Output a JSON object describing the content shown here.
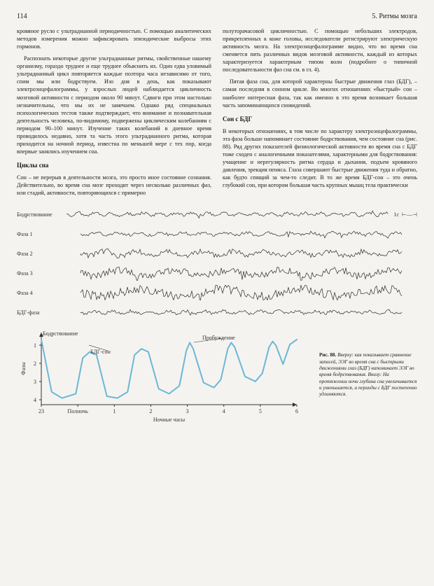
{
  "page_number": "114",
  "chapter_header": "5. Ритмы мозга",
  "col1": {
    "p1": "кровяное русло с ультрадианной периодичностью. С помощью аналитических методов измерения можно зафиксировать эпизодические выбросы этих гормонов.",
    "p2": "Распознать некоторые другие ультрадианные ритмы, свойственные нашему организму, гораздо труднее и еще труднее объяснить их. Один едва уловимый ультрадианный цикл повторяется каждые полтора часа независимо от того, спим мы или бодрствуем. Изо дня в день, как показывают электроэнцефалограммы, у взрослых людей наблюдается цикличность мозговой активности с периодом около 90 минут. Сдвиги при этом настолько незначительны, что мы их не замечаем. Однако ряд специальных психологических тестов также подтверждает, что внимание и познавательная деятельность человека, по-видимому, подвержены циклическим колебаниям с периодом 90–100 минут. Изучение таких колебаний в дневное время проводилось недавно, хотя та часть этого ультрадианного ритма, которая приходится на ночной период, известна по меньшей мере с тех пор, когда впервые занялись изучением сна.",
    "h1": "Циклы сна",
    "p3": "Сон – не перерыв в деятельности мозга, это просто иное состояние сознания. Действительно, во время сна мозг проходит через несколько различных фаз, или стадий, активности, повторяющихся с примерно"
  },
  "col2": {
    "p1": "полуторачасовой цикличностью. С помощью небольших электродов, прикрепленных к коже головы, исследователи регистрируют электрическую активность мозга. На электроэнцефалограмме видно, что во время сна сменяется пять различных видов мозговой активности, каждый из которых характеризуется характерным типом волн (подробнее о типичной последовательности фаз сна см. в гл. 4).",
    "p2": "Пятая фаза сна, для которой характерны быстрые движения глаз (БДГ), – самая последняя в сонном цикле. Во многих отношениях «быстрый» сон – наиболее интересная фаза, так как именно в это время возникает большая часть запоминающихся сновидений.",
    "h1": "Сон с БДГ",
    "p3": "В некоторых отношениях, в том числе по характеру электроэнцефалограммы, эта фаза больше напоминает состояние бодрствования, чем состояние сна (рис. 88). Ряд других показателей физиологической активности во время сна с БДГ тоже сходен с аналогичными показателями, характерными для бодрствования: учащение и нерегулярность ритма сердца и дыхания, подъем кровяного давления, эрекция пениса. Глаза совершают быстрые движения туда и обратно, как будто спящий за чем-то следит. В то же время БДГ-сон – это очень глубокий сон, при котором большая часть крупных мышц тела практически"
  },
  "eeg": {
    "labels": [
      "Бодрствование",
      "Фаза 1",
      "Фаза 2",
      "Фаза 3",
      "Фаза 4",
      "БДГ-фаза"
    ],
    "scale_label": "1с",
    "wave_amplitudes": [
      3,
      3,
      5,
      7,
      9,
      3
    ],
    "wave_freqs": [
      40,
      30,
      20,
      12,
      8,
      35
    ],
    "color": "#2a2a2a"
  },
  "chart": {
    "ylabel": "Фазы",
    "xlabel": "Ночные часы",
    "top_label_wake": "Бодрствование",
    "label_bdg": "БДГ-сон",
    "label_wakeup": "Пробуждение",
    "yticks": [
      "1",
      "2",
      "3",
      "4"
    ],
    "xticks": [
      "23",
      "Полночь",
      "1",
      "2",
      "3",
      "4",
      "5",
      "6"
    ],
    "line_color": "#6bb8d6",
    "axis_color": "#333333",
    "background": "#f5f3f0",
    "points": [
      [
        0,
        0
      ],
      [
        15,
        85
      ],
      [
        30,
        95
      ],
      [
        50,
        88
      ],
      [
        60,
        30
      ],
      [
        70,
        20
      ],
      [
        80,
        25
      ],
      [
        95,
        92
      ],
      [
        110,
        95
      ],
      [
        125,
        85
      ],
      [
        135,
        25
      ],
      [
        145,
        15
      ],
      [
        155,
        20
      ],
      [
        170,
        80
      ],
      [
        185,
        88
      ],
      [
        200,
        75
      ],
      [
        210,
        18
      ],
      [
        215,
        5
      ],
      [
        220,
        15
      ],
      [
        235,
        70
      ],
      [
        250,
        78
      ],
      [
        260,
        65
      ],
      [
        270,
        15
      ],
      [
        275,
        5
      ],
      [
        280,
        12
      ],
      [
        295,
        60
      ],
      [
        310,
        68
      ],
      [
        320,
        55
      ],
      [
        330,
        12
      ],
      [
        335,
        3
      ],
      [
        340,
        10
      ],
      [
        350,
        40
      ],
      [
        360,
        8
      ],
      [
        370,
        0
      ]
    ]
  },
  "caption": {
    "fig": "Рис. 88.",
    "text": "Вверху: как показывает сравнение записей, ЭЭГ во время сна с быстрыми движениями глаз (БДГ) напоминает ЭЭГ во время бодрствования. Внизу: На протяжении ночи глубина сна увеличивается и уменьшается, а периоды с БДГ постепенно удлиняются."
  }
}
